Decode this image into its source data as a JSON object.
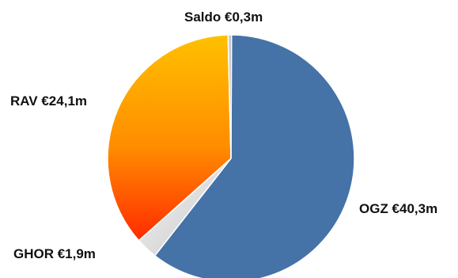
{
  "chart_data": {
    "type": "pie",
    "title": "",
    "slices": [
      {
        "label": "OGZ",
        "value": 40.3,
        "display": "OGZ €40,3m",
        "color": "#4572a7"
      },
      {
        "label": "GHOR",
        "value": 1.9,
        "display": "GHOR €1,9m",
        "color": "#d9d9d9"
      },
      {
        "label": "RAV",
        "value": 24.1,
        "display": "RAV €24,1m",
        "color": "gradient-red-orange-yellow"
      },
      {
        "label": "Saldo",
        "value": 0.3,
        "display": "Saldo €0,3m",
        "color": "#c8c8c8"
      }
    ],
    "legend": "none",
    "data_labels": "outside"
  }
}
